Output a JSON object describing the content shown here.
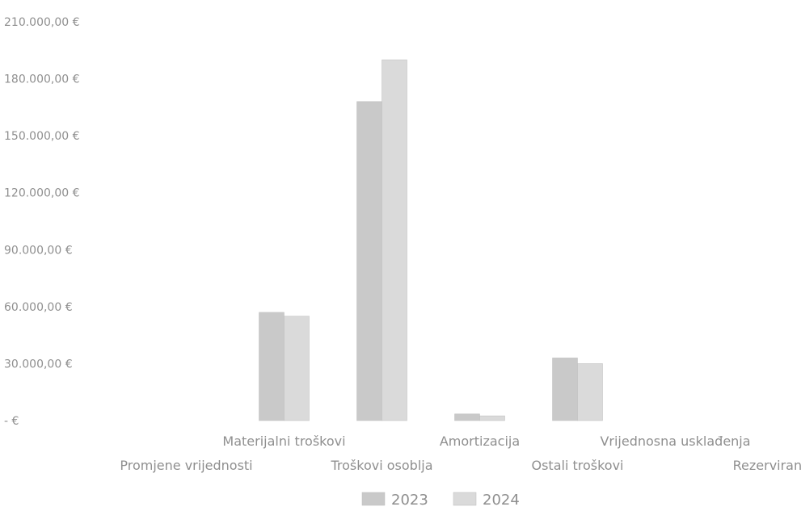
{
  "chart_data": {
    "type": "bar",
    "categories": [
      "Promjene vrijednosti",
      "Materijalni troškovi",
      "Troškovi osoblja",
      "Amortizacija",
      "Ostali troškovi",
      "Vrijednosna usklađenja",
      "Rezerviranja"
    ],
    "series": [
      {
        "name": "2023",
        "values": [
          0,
          57000,
          168000,
          3500,
          33000,
          0,
          0
        ]
      },
      {
        "name": "2024",
        "values": [
          0,
          55000,
          190000,
          2500,
          30000,
          0,
          0
        ]
      }
    ],
    "y_ticks": [
      {
        "value": 0,
        "label": "-   €"
      },
      {
        "value": 30000,
        "label": "30.000,00 €"
      },
      {
        "value": 60000,
        "label": "60.000,00 €"
      },
      {
        "value": 90000,
        "label": "90.000,00 €"
      },
      {
        "value": 120000,
        "label": "120.000,00 €"
      },
      {
        "value": 150000,
        "label": "150.000,00 €"
      },
      {
        "value": 180000,
        "label": "180.000,00 €"
      },
      {
        "value": 210000,
        "label": "210.000,00 €"
      }
    ],
    "ylim": [
      0,
      210000
    ],
    "grid": false,
    "legend_position": "bottom",
    "colors": {
      "2023": "#c9c9c9",
      "2024": "#dadada",
      "text": "#8f8f8f"
    }
  }
}
